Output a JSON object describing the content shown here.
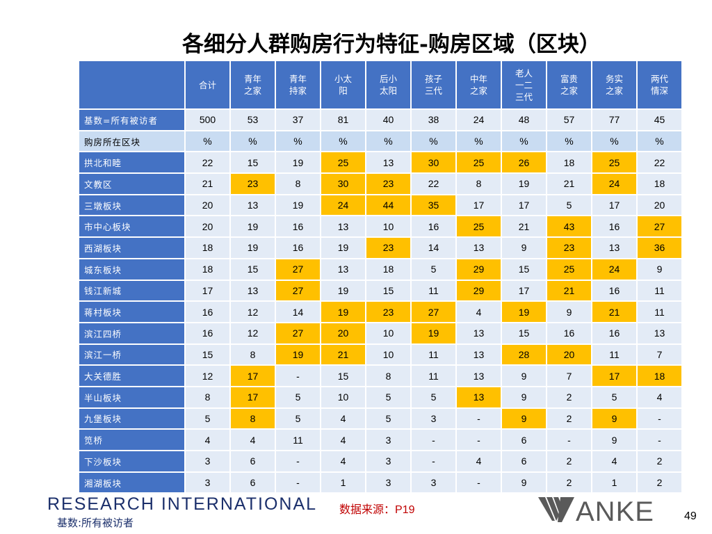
{
  "title": "各细分人群购房行为特征-购房区域（区块）",
  "table": {
    "columns": [
      "合计",
      "青年\n之家",
      "青年\n持家",
      "小太\n阳",
      "后小\n太阳",
      "孩子\n三代",
      "中年\n之家",
      "老人\n一二\n三代",
      "富贵\n之家",
      "务实\n之家",
      "两代\n情深"
    ],
    "rows": [
      {
        "label": "基数=所有被访者",
        "values": [
          "500",
          "53",
          "37",
          "81",
          "40",
          "38",
          "24",
          "48",
          "57",
          "77",
          "45"
        ],
        "highlight": []
      },
      {
        "label": "购房所在区块",
        "values": [
          "%",
          "%",
          "%",
          "%",
          "%",
          "%",
          "%",
          "%",
          "%",
          "%",
          "%"
        ],
        "highlight": []
      },
      {
        "label": "拱北和睦",
        "values": [
          "22",
          "15",
          "19",
          "25",
          "13",
          "30",
          "25",
          "26",
          "18",
          "25",
          "22"
        ],
        "highlight": [
          3,
          5,
          6,
          7,
          9
        ]
      },
      {
        "label": "文教区",
        "values": [
          "21",
          "23",
          "8",
          "30",
          "23",
          "22",
          "8",
          "19",
          "21",
          "24",
          "18"
        ],
        "highlight": [
          1,
          3,
          4,
          9
        ]
      },
      {
        "label": "三墩板块",
        "values": [
          "20",
          "13",
          "19",
          "24",
          "44",
          "35",
          "17",
          "17",
          "5",
          "17",
          "20"
        ],
        "highlight": [
          3,
          4,
          5
        ]
      },
      {
        "label": "市中心板块",
        "values": [
          "20",
          "19",
          "16",
          "13",
          "10",
          "16",
          "25",
          "21",
          "43",
          "16",
          "27"
        ],
        "highlight": [
          6,
          8,
          10
        ]
      },
      {
        "label": "西湖板块",
        "values": [
          "18",
          "19",
          "16",
          "19",
          "23",
          "14",
          "13",
          "9",
          "23",
          "13",
          "36"
        ],
        "highlight": [
          4,
          8,
          10
        ]
      },
      {
        "label": "城东板块",
        "values": [
          "18",
          "15",
          "27",
          "13",
          "18",
          "5",
          "29",
          "15",
          "25",
          "24",
          "9"
        ],
        "highlight": [
          2,
          6,
          8,
          9
        ]
      },
      {
        "label": "钱江新城",
        "values": [
          "17",
          "13",
          "27",
          "19",
          "15",
          "11",
          "29",
          "17",
          "21",
          "16",
          "11"
        ],
        "highlight": [
          2,
          6,
          8
        ]
      },
      {
        "label": "蒋村板块",
        "values": [
          "16",
          "12",
          "14",
          "19",
          "23",
          "27",
          "4",
          "19",
          "9",
          "21",
          "11"
        ],
        "highlight": [
          3,
          4,
          5,
          7,
          9
        ]
      },
      {
        "label": "滨江四桥",
        "values": [
          "16",
          "12",
          "27",
          "20",
          "10",
          "19",
          "13",
          "15",
          "16",
          "16",
          "13"
        ],
        "highlight": [
          2,
          3,
          5
        ]
      },
      {
        "label": "滨江一桥",
        "values": [
          "15",
          "8",
          "19",
          "21",
          "10",
          "11",
          "13",
          "28",
          "20",
          "11",
          "7"
        ],
        "highlight": [
          2,
          3,
          7,
          8
        ]
      },
      {
        "label": "大关德胜",
        "values": [
          "12",
          "17",
          "-",
          "15",
          "8",
          "11",
          "13",
          "9",
          "7",
          "17",
          "18"
        ],
        "highlight": [
          1,
          9,
          10
        ]
      },
      {
        "label": "半山板块",
        "values": [
          "8",
          "17",
          "5",
          "10",
          "5",
          "5",
          "13",
          "9",
          "2",
          "5",
          "4"
        ],
        "highlight": [
          1,
          6
        ]
      },
      {
        "label": "九堡板块",
        "values": [
          "5",
          "8",
          "5",
          "4",
          "5",
          "3",
          "-",
          "9",
          "2",
          "9",
          "-"
        ],
        "highlight": [
          1,
          7,
          9
        ]
      },
      {
        "label": "笕桥",
        "values": [
          "4",
          "4",
          "11",
          "4",
          "3",
          "-",
          "-",
          "6",
          "-",
          "9",
          "-"
        ],
        "highlight": []
      },
      {
        "label": "下沙板块",
        "values": [
          "3",
          "6",
          "-",
          "4",
          "3",
          "-",
          "4",
          "6",
          "2",
          "4",
          "2"
        ],
        "highlight": []
      },
      {
        "label": "湘湖板块",
        "values": [
          "3",
          "6",
          "-",
          "1",
          "3",
          "3",
          "-",
          "9",
          "2",
          "1",
          "2"
        ],
        "highlight": []
      }
    ]
  },
  "footer": {
    "brand": "RESEARCH INTERNATIONAL",
    "base_note": "基数:所有被访者",
    "source_label": "数据来源：",
    "source_page": "P19",
    "logo_text": "VANKE",
    "page_number": "49"
  },
  "colors": {
    "header_blue": "#4472c4",
    "cell_light": "#e3ebf6",
    "percent_row": "#c9dcf2",
    "highlight": "#ffc000",
    "source_red": "#c00000",
    "brand_navy": "#1b2f6b"
  }
}
